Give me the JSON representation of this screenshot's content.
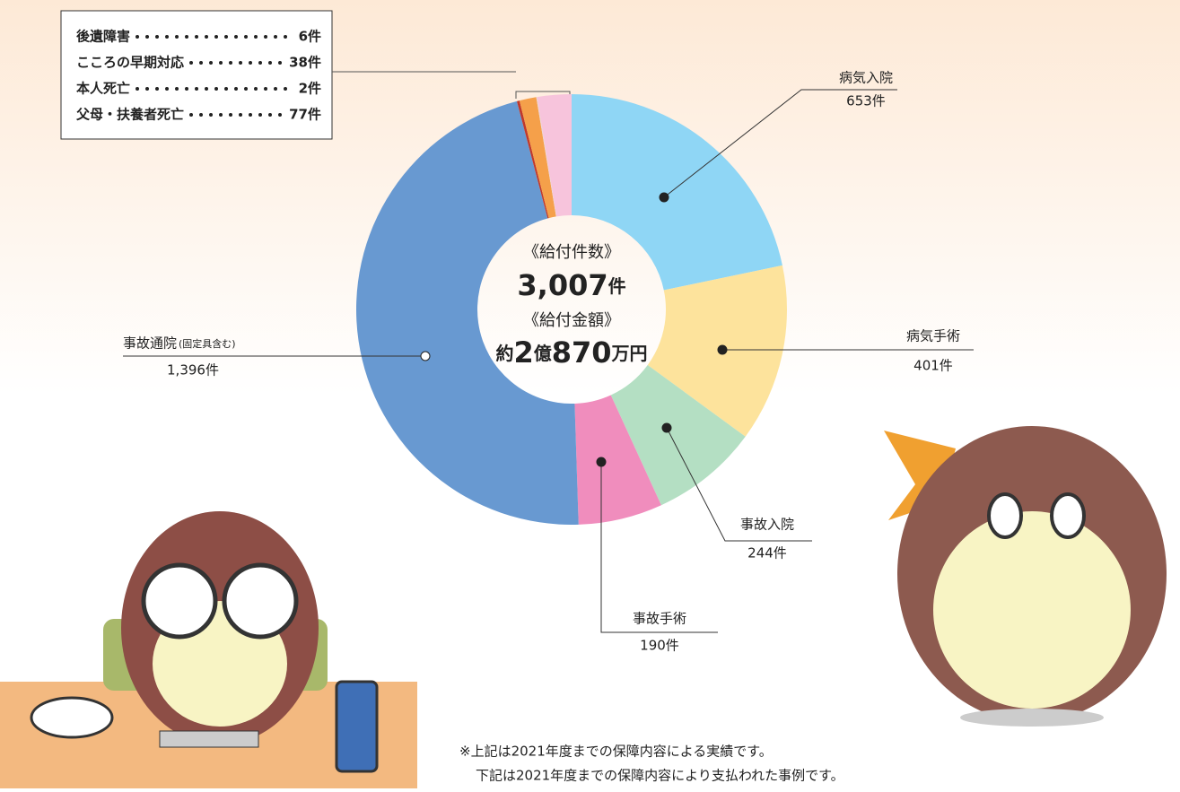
{
  "chart_data": {
    "type": "pie",
    "categories": [
      "病気入院",
      "病気手術",
      "事故入院",
      "事故手術",
      "事故通院",
      "後遺障害",
      "こころの早期対応",
      "本人死亡",
      "父母・扶養者死亡"
    ],
    "values": [
      653,
      401,
      244,
      190,
      1396,
      6,
      38,
      2,
      77
    ],
    "value_labels": [
      "653件",
      "401件",
      "244件",
      "190件",
      "1,396件",
      "6件",
      "38件",
      "2件",
      "77件"
    ],
    "colors": [
      "#8fd6f5",
      "#fde39c",
      "#b4dfc3",
      "#f08dbd",
      "#6899d1",
      "#c0392b",
      "#f5a04a",
      "#e9d6d6",
      "#f7c4dc"
    ],
    "note": "(固定具含む)",
    "center": {
      "count_label": "《給付件数》",
      "count": [
        "3,007",
        "件"
      ],
      "amount_label": "《給付金額》",
      "amount": [
        "約",
        "2",
        "億",
        "870",
        "万円"
      ]
    }
  },
  "footnote": [
    "※上記は2021年度までの保障内容による実績です。",
    "下記は2021年度までの保障内容により支払われた事例です。"
  ]
}
